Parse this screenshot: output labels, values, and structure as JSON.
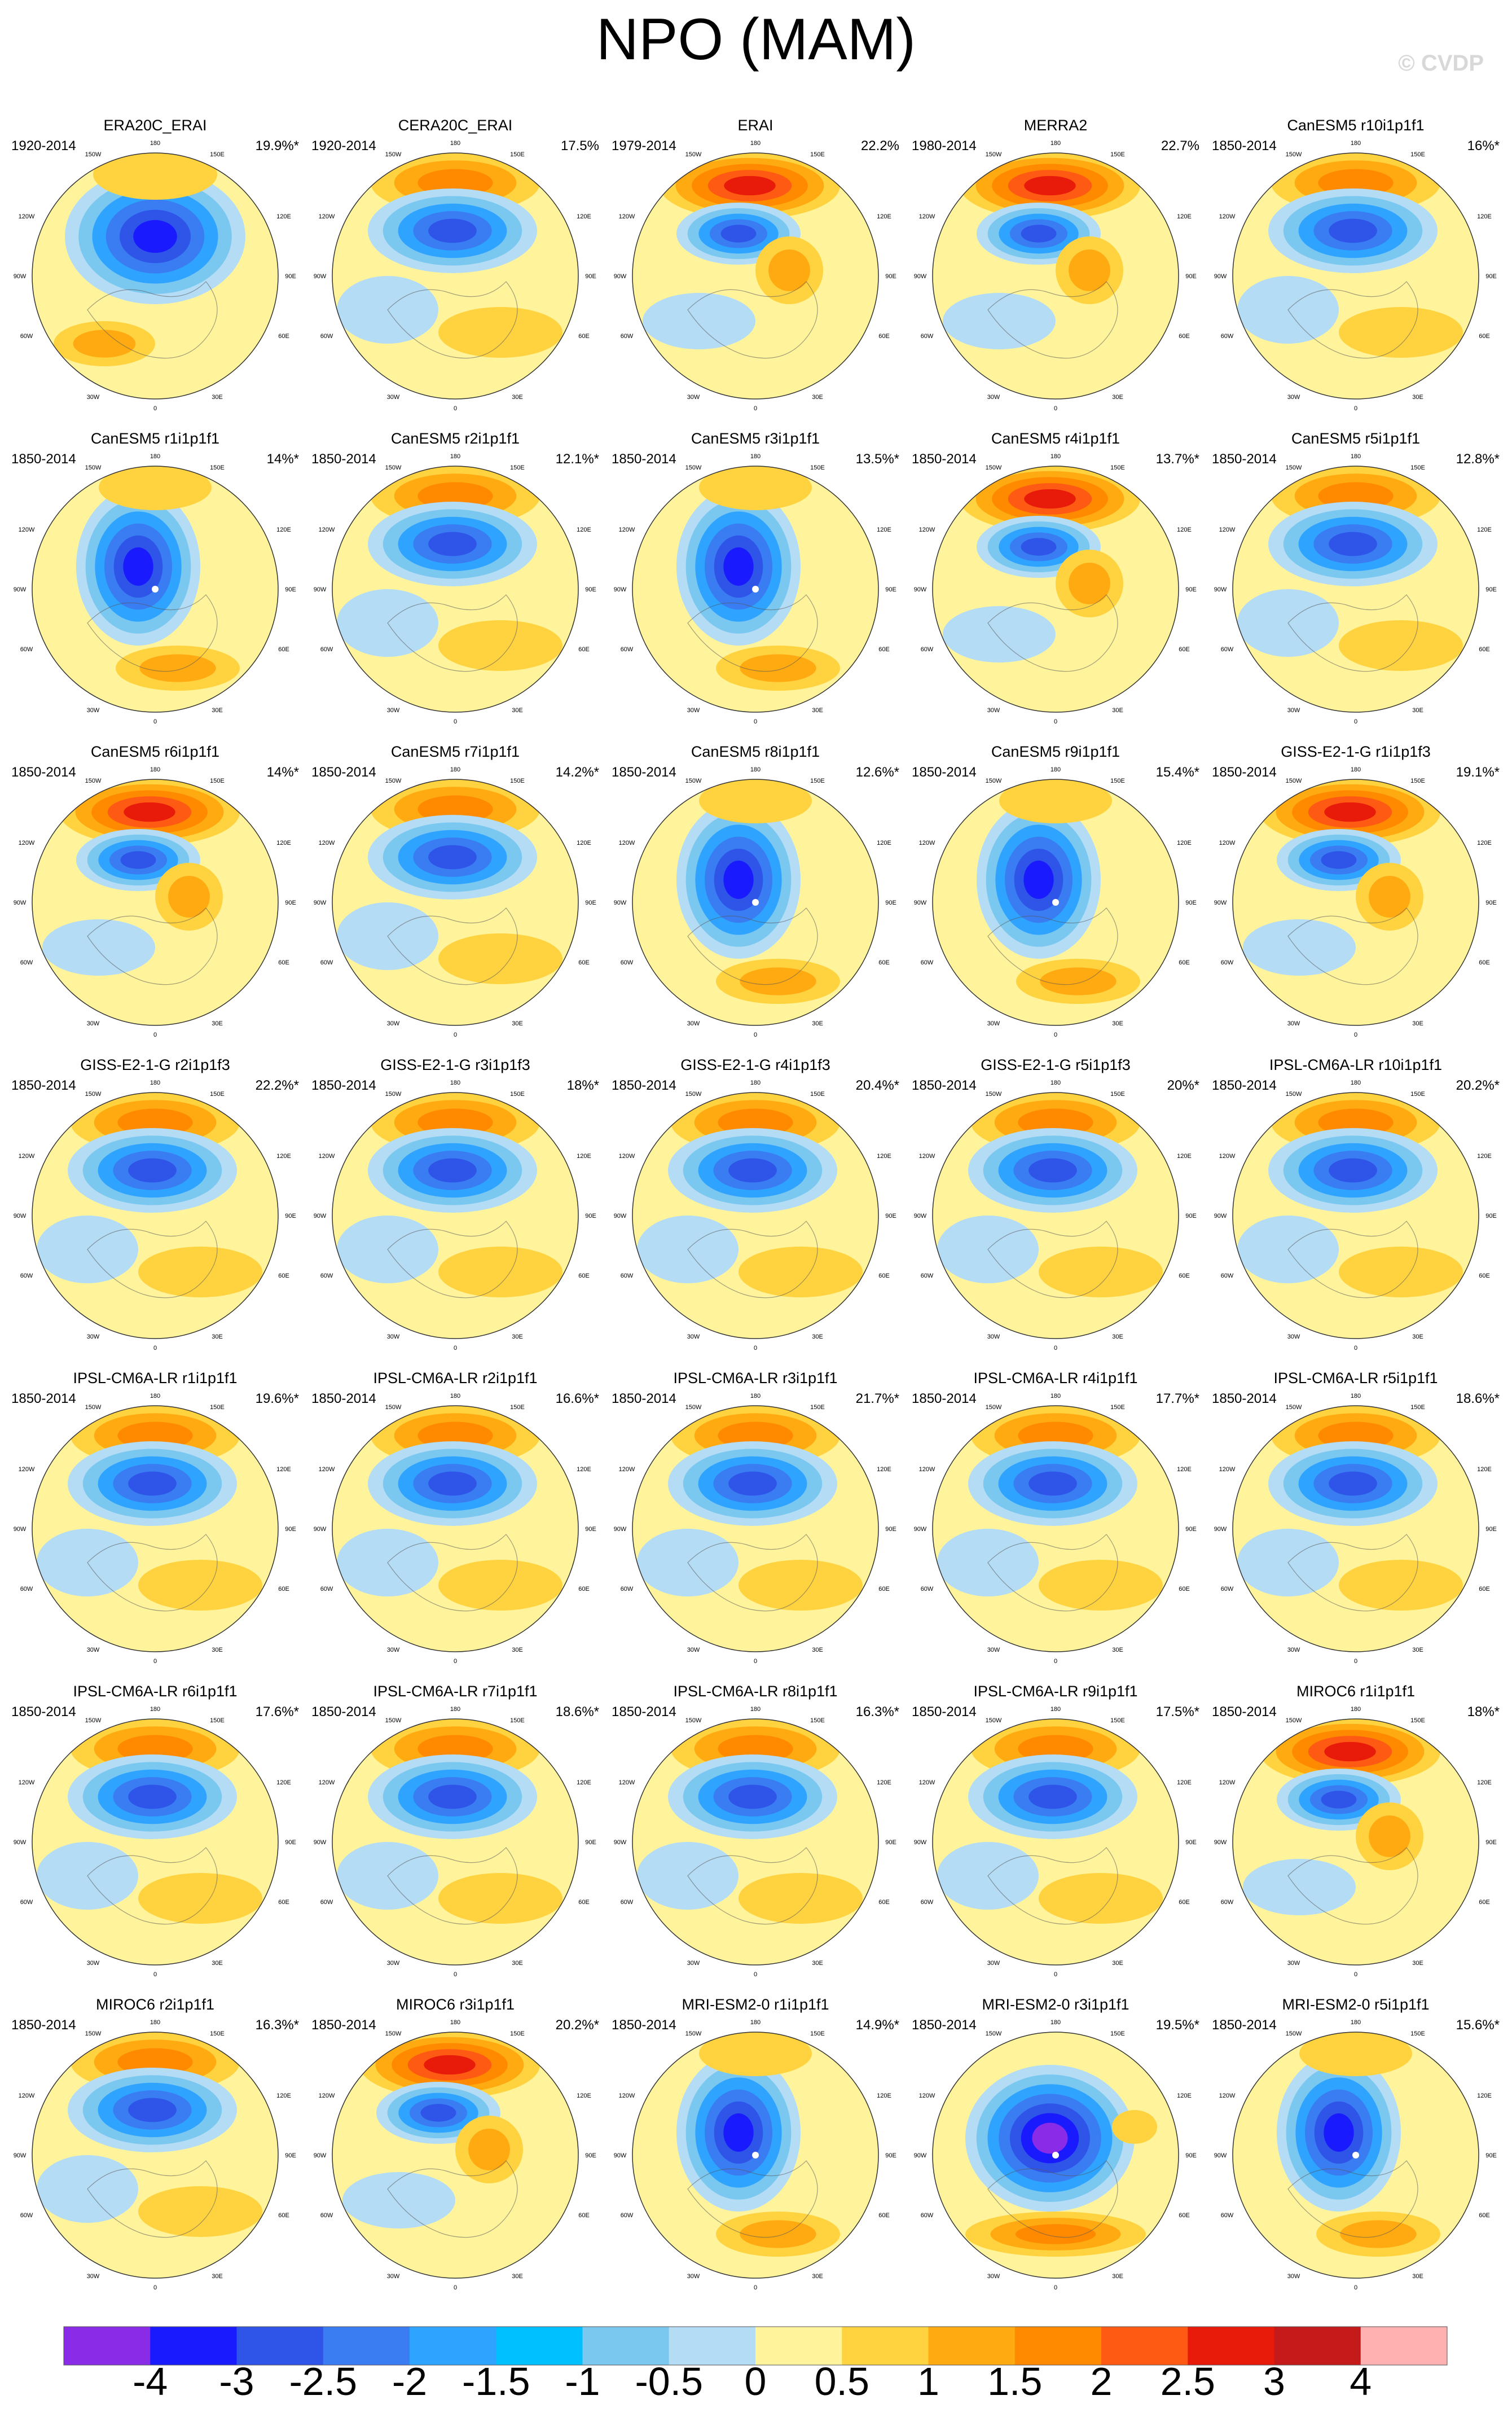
{
  "title": "NPO (MAM)",
  "watermark": "© CVDP",
  "map_labels": {
    "top": "180",
    "bottom": "0",
    "left": "90W",
    "right": "90E",
    "upper_left_outer": "120W",
    "upper_left_inner": "150W",
    "upper_right_inner": "150E",
    "upper_right_outer": "120E",
    "lower_left_outer": "60W",
    "lower_left_inner": "30W",
    "lower_right_inner": "30E",
    "lower_right_outer": "60E"
  },
  "panels": [
    {
      "title": "ERA20C_ERAI",
      "years": "1920-2014",
      "pct": "19.9%*",
      "pattern": "a"
    },
    {
      "title": "CERA20C_ERAI",
      "years": "1920-2014",
      "pct": "17.5%",
      "pattern": "b"
    },
    {
      "title": "ERAI",
      "years": "1979-2014",
      "pct": "22.2%",
      "pattern": "c"
    },
    {
      "title": "MERRA2",
      "years": "1980-2014",
      "pct": "22.7%",
      "pattern": "c"
    },
    {
      "title": "CanESM5 r10i1p1f1",
      "years": "1850-2014",
      "pct": "16%*",
      "pattern": "b"
    },
    {
      "title": "CanESM5 r1i1p1f1",
      "years": "1850-2014",
      "pct": "14%*",
      "pattern": "d"
    },
    {
      "title": "CanESM5 r2i1p1f1",
      "years": "1850-2014",
      "pct": "12.1%*",
      "pattern": "b"
    },
    {
      "title": "CanESM5 r3i1p1f1",
      "years": "1850-2014",
      "pct": "13.5%*",
      "pattern": "d"
    },
    {
      "title": "CanESM5 r4i1p1f1",
      "years": "1850-2014",
      "pct": "13.7%*",
      "pattern": "c"
    },
    {
      "title": "CanESM5 r5i1p1f1",
      "years": "1850-2014",
      "pct": "12.8%*",
      "pattern": "b"
    },
    {
      "title": "CanESM5 r6i1p1f1",
      "years": "1850-2014",
      "pct": "14%*",
      "pattern": "c"
    },
    {
      "title": "CanESM5 r7i1p1f1",
      "years": "1850-2014",
      "pct": "14.2%*",
      "pattern": "b"
    },
    {
      "title": "CanESM5 r8i1p1f1",
      "years": "1850-2014",
      "pct": "12.6%*",
      "pattern": "d"
    },
    {
      "title": "CanESM5 r9i1p1f1",
      "years": "1850-2014",
      "pct": "15.4%*",
      "pattern": "d"
    },
    {
      "title": "GISS-E2-1-G r1i1p1f3",
      "years": "1850-2014",
      "pct": "19.1%*",
      "pattern": "c"
    },
    {
      "title": "GISS-E2-1-G r2i1p1f3",
      "years": "1850-2014",
      "pct": "22.2%*",
      "pattern": "b"
    },
    {
      "title": "GISS-E2-1-G r3i1p1f3",
      "years": "1850-2014",
      "pct": "18%*",
      "pattern": "b"
    },
    {
      "title": "GISS-E2-1-G r4i1p1f3",
      "years": "1850-2014",
      "pct": "20.4%*",
      "pattern": "b"
    },
    {
      "title": "GISS-E2-1-G r5i1p1f3",
      "years": "1850-2014",
      "pct": "20%*",
      "pattern": "b"
    },
    {
      "title": "IPSL-CM6A-LR r10i1p1f1",
      "years": "1850-2014",
      "pct": "20.2%*",
      "pattern": "b"
    },
    {
      "title": "IPSL-CM6A-LR r1i1p1f1",
      "years": "1850-2014",
      "pct": "19.6%*",
      "pattern": "b"
    },
    {
      "title": "IPSL-CM6A-LR r2i1p1f1",
      "years": "1850-2014",
      "pct": "16.6%*",
      "pattern": "b"
    },
    {
      "title": "IPSL-CM6A-LR r3i1p1f1",
      "years": "1850-2014",
      "pct": "21.7%*",
      "pattern": "b"
    },
    {
      "title": "IPSL-CM6A-LR r4i1p1f1",
      "years": "1850-2014",
      "pct": "17.7%*",
      "pattern": "b"
    },
    {
      "title": "IPSL-CM6A-LR r5i1p1f1",
      "years": "1850-2014",
      "pct": "18.6%*",
      "pattern": "b"
    },
    {
      "title": "IPSL-CM6A-LR r6i1p1f1",
      "years": "1850-2014",
      "pct": "17.6%*",
      "pattern": "b"
    },
    {
      "title": "IPSL-CM6A-LR r7i1p1f1",
      "years": "1850-2014",
      "pct": "18.6%*",
      "pattern": "b"
    },
    {
      "title": "IPSL-CM6A-LR r8i1p1f1",
      "years": "1850-2014",
      "pct": "16.3%*",
      "pattern": "b"
    },
    {
      "title": "IPSL-CM6A-LR r9i1p1f1",
      "years": "1850-2014",
      "pct": "17.5%*",
      "pattern": "b"
    },
    {
      "title": "MIROC6 r1i1p1f1",
      "years": "1850-2014",
      "pct": "18%*",
      "pattern": "c"
    },
    {
      "title": "MIROC6 r2i1p1f1",
      "years": "1850-2014",
      "pct": "16.3%*",
      "pattern": "b"
    },
    {
      "title": "MIROC6 r3i1p1f1",
      "years": "1850-2014",
      "pct": "20.2%*",
      "pattern": "c"
    },
    {
      "title": "MRI-ESM2-0 r1i1p1f1",
      "years": "1850-2014",
      "pct": "14.9%*",
      "pattern": "d"
    },
    {
      "title": "MRI-ESM2-0 r3i1p1f1",
      "years": "1850-2014",
      "pct": "19.5%*",
      "pattern": "e"
    },
    {
      "title": "MRI-ESM2-0 r5i1p1f1",
      "years": "1850-2014",
      "pct": "15.6%*",
      "pattern": "d"
    }
  ],
  "colorbar": {
    "colors": [
      "#8a2be8",
      "#1a1aff",
      "#2f55e8",
      "#3a7cf2",
      "#2ea3ff",
      "#00c0ff",
      "#7ac8f0",
      "#b4dcf5",
      "#fff49c",
      "#ffd340",
      "#ffaa10",
      "#ff8a00",
      "#ff5a14",
      "#e81a0a",
      "#c41a1a",
      "#ffb0b0"
    ],
    "labels": [
      "-4",
      "-3",
      "-2.5",
      "-2",
      "-1.5",
      "-1",
      "-0.5",
      "0",
      "0.5",
      "1",
      "1.5",
      "2",
      "2.5",
      "3",
      "4"
    ]
  }
}
